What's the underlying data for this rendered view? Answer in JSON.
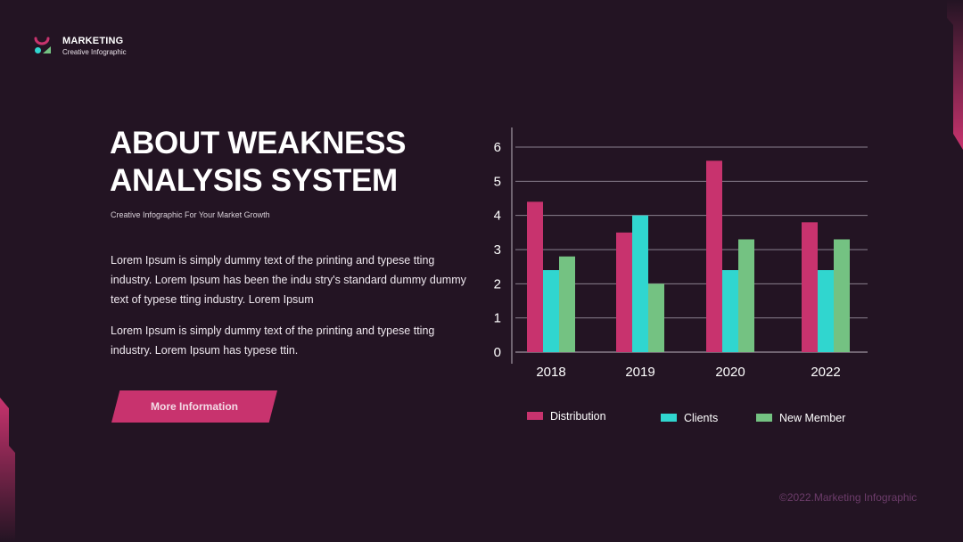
{
  "brand": {
    "title": "MARKETING",
    "subtitle": "Creative Infographic",
    "logo_icon": "marketing-logo-icon",
    "colors": {
      "pink": "#c8336e",
      "teal": "#30d6cf",
      "green": "#74c282"
    }
  },
  "heading": {
    "line1": "ABOUT WEAKNESS",
    "line2": "ANALYSIS SYSTEM"
  },
  "subtitle": "Creative Infographic For Your Market Growth",
  "paragraphs": [
    "Lorem Ipsum is simply dummy text of the printing and typese tting industry. Lorem Ipsum has been the indu stry's standard dummy dummy text of typese tting industry. Lorem Ipsum",
    "Lorem Ipsum is simply dummy text of the printing and typese tting industry. Lorem Ipsum has typese ttin."
  ],
  "button": {
    "label": "More Information"
  },
  "footer": "©2022.Marketing Infographic",
  "background_color": "#231423",
  "chart_data": {
    "type": "bar",
    "categories": [
      "2018",
      "2019",
      "2020",
      "2022"
    ],
    "series": [
      {
        "name": "Distribution",
        "values": [
          4.4,
          3.5,
          5.6,
          3.8
        ],
        "color": "#c8336e"
      },
      {
        "name": "Clients",
        "values": [
          2.4,
          4.0,
          2.4,
          2.4
        ],
        "color": "#30d6cf"
      },
      {
        "name": "New Member",
        "values": [
          2.8,
          2.0,
          3.3,
          3.3
        ],
        "color": "#74c282"
      }
    ],
    "ylim": [
      0,
      6
    ],
    "yticks": [
      0,
      1,
      2,
      3,
      4,
      5,
      6
    ],
    "grid": true,
    "legend": "bottom"
  }
}
